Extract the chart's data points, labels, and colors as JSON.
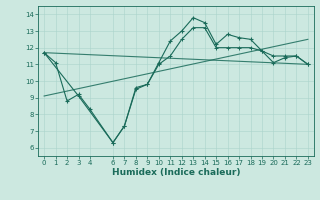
{
  "title": "",
  "xlabel": "Humidex (Indice chaleur)",
  "bg_color": "#cce8e0",
  "line_color": "#1a6b5a",
  "xlim": [
    -0.5,
    23.5
  ],
  "ylim": [
    5.5,
    14.5
  ],
  "xticks": [
    0,
    1,
    2,
    3,
    4,
    6,
    7,
    8,
    9,
    10,
    11,
    12,
    13,
    14,
    15,
    16,
    17,
    18,
    19,
    20,
    21,
    22,
    23
  ],
  "yticks": [
    6,
    7,
    8,
    9,
    10,
    11,
    12,
    13,
    14
  ],
  "line1_x": [
    0,
    1,
    2,
    3,
    4,
    6,
    7,
    8,
    9,
    10,
    11,
    12,
    13,
    14,
    15,
    16,
    17,
    18,
    19,
    20,
    21,
    22,
    23
  ],
  "line1_y": [
    11.7,
    11.1,
    8.8,
    9.2,
    8.3,
    6.3,
    7.3,
    9.6,
    9.8,
    11.1,
    12.4,
    13.0,
    13.8,
    13.5,
    12.2,
    12.8,
    12.6,
    12.5,
    11.8,
    11.1,
    11.4,
    11.5,
    11.0
  ],
  "line2_x": [
    0,
    3,
    6,
    7,
    8,
    9,
    10,
    11,
    12,
    13,
    14,
    15,
    16,
    17,
    18,
    19,
    20,
    21,
    22,
    23
  ],
  "line2_y": [
    11.7,
    9.1,
    6.3,
    7.3,
    9.5,
    9.8,
    11.0,
    11.5,
    12.5,
    13.2,
    13.2,
    12.0,
    12.0,
    12.0,
    12.0,
    11.8,
    11.5,
    11.5,
    11.5,
    11.0
  ],
  "line3_x": [
    0,
    23
  ],
  "line3_y": [
    11.7,
    11.0
  ],
  "line4_x": [
    0,
    23
  ],
  "line4_y": [
    9.1,
    12.5
  ]
}
